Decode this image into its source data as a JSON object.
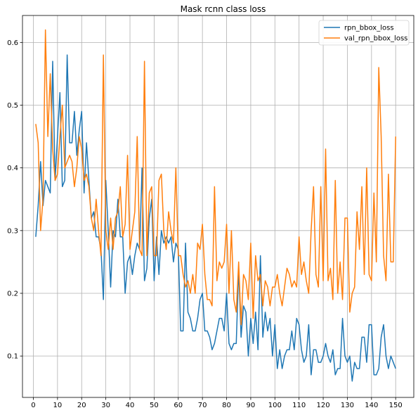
{
  "chart_data": {
    "type": "line",
    "title": "Mask rcnn class loss",
    "xlabel": "",
    "ylabel": "",
    "xlim": [
      -4.5,
      157.5
    ],
    "ylim": [
      0.034,
      0.643
    ],
    "xticks": [
      0,
      10,
      20,
      30,
      40,
      50,
      60,
      70,
      80,
      90,
      100,
      110,
      120,
      130,
      140,
      150
    ],
    "yticks": [
      0.1,
      0.2,
      0.3,
      0.4,
      0.5,
      0.6
    ],
    "grid": true,
    "legend_position": "top-right",
    "series": [
      {
        "name": "rpn_bbox_loss",
        "color": "#1f77b4",
        "values": [
          0.29,
          0.34,
          0.41,
          0.34,
          0.38,
          0.37,
          0.36,
          0.57,
          0.38,
          0.45,
          0.52,
          0.37,
          0.38,
          0.58,
          0.44,
          0.44,
          0.49,
          0.42,
          0.46,
          0.49,
          0.36,
          0.44,
          0.38,
          0.32,
          0.33,
          0.29,
          0.29,
          0.27,
          0.19,
          0.38,
          0.3,
          0.21,
          0.3,
          0.29,
          0.35,
          0.29,
          0.29,
          0.2,
          0.25,
          0.26,
          0.23,
          0.26,
          0.28,
          0.27,
          0.4,
          0.22,
          0.24,
          0.32,
          0.35,
          0.22,
          0.29,
          0.23,
          0.3,
          0.28,
          0.29,
          0.28,
          0.29,
          0.25,
          0.28,
          0.27,
          0.14,
          0.14,
          0.28,
          0.17,
          0.16,
          0.14,
          0.14,
          0.16,
          0.19,
          0.2,
          0.14,
          0.14,
          0.13,
          0.11,
          0.12,
          0.14,
          0.16,
          0.16,
          0.14,
          0.2,
          0.12,
          0.11,
          0.12,
          0.12,
          0.24,
          0.13,
          0.18,
          0.17,
          0.1,
          0.16,
          0.12,
          0.17,
          0.11,
          0.26,
          0.13,
          0.17,
          0.14,
          0.16,
          0.1,
          0.15,
          0.08,
          0.11,
          0.08,
          0.1,
          0.11,
          0.11,
          0.14,
          0.11,
          0.16,
          0.15,
          0.11,
          0.09,
          0.1,
          0.15,
          0.07,
          0.11,
          0.11,
          0.09,
          0.09,
          0.1,
          0.12,
          0.1,
          0.09,
          0.11,
          0.07,
          0.08,
          0.08,
          0.16,
          0.1,
          0.09,
          0.1,
          0.06,
          0.09,
          0.08,
          0.08,
          0.13,
          0.13,
          0.09,
          0.15,
          0.15,
          0.07,
          0.07,
          0.08,
          0.13,
          0.15,
          0.1,
          0.08,
          0.1,
          0.09,
          0.08
        ]
      },
      {
        "name": "val_rpn_bbox_loss",
        "color": "#ff7f0e",
        "values": [
          0.47,
          0.44,
          0.3,
          0.35,
          0.62,
          0.45,
          0.55,
          0.43,
          0.38,
          0.39,
          0.45,
          0.5,
          0.4,
          0.41,
          0.42,
          0.41,
          0.37,
          0.4,
          0.45,
          0.43,
          0.38,
          0.39,
          0.37,
          0.32,
          0.3,
          0.35,
          0.3,
          0.26,
          0.58,
          0.3,
          0.27,
          0.32,
          0.27,
          0.32,
          0.33,
          0.37,
          0.29,
          0.31,
          0.42,
          0.27,
          0.3,
          0.33,
          0.45,
          0.27,
          0.26,
          0.57,
          0.26,
          0.36,
          0.37,
          0.26,
          0.26,
          0.38,
          0.39,
          0.3,
          0.27,
          0.33,
          0.3,
          0.28,
          0.4,
          0.26,
          0.26,
          0.23,
          0.21,
          0.22,
          0.2,
          0.23,
          0.2,
          0.28,
          0.27,
          0.31,
          0.23,
          0.19,
          0.19,
          0.18,
          0.37,
          0.22,
          0.25,
          0.24,
          0.25,
          0.31,
          0.2,
          0.3,
          0.19,
          0.17,
          0.25,
          0.15,
          0.23,
          0.22,
          0.19,
          0.28,
          0.16,
          0.26,
          0.22,
          0.23,
          0.18,
          0.22,
          0.21,
          0.18,
          0.21,
          0.21,
          0.23,
          0.2,
          0.18,
          0.21,
          0.24,
          0.23,
          0.21,
          0.22,
          0.21,
          0.29,
          0.23,
          0.25,
          0.22,
          0.2,
          0.3,
          0.37,
          0.23,
          0.21,
          0.37,
          0.22,
          0.43,
          0.22,
          0.24,
          0.19,
          0.38,
          0.2,
          0.25,
          0.19,
          0.32,
          0.32,
          0.17,
          0.2,
          0.21,
          0.33,
          0.27,
          0.37,
          0.23,
          0.4,
          0.23,
          0.22,
          0.36,
          0.25,
          0.56,
          0.45,
          0.26,
          0.22,
          0.39,
          0.25,
          0.25,
          0.45
        ]
      }
    ]
  }
}
